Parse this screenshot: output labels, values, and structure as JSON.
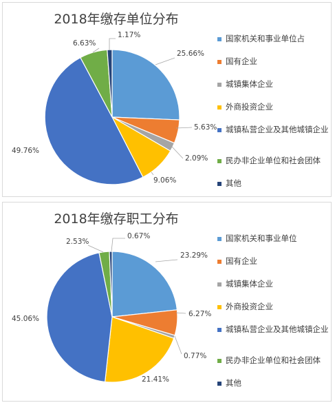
{
  "chart_data": [
    {
      "type": "pie",
      "title": "2018年缴存单位分布",
      "categories": [
        "国家机关和事业单位占",
        "国有企业",
        "城镇集体企业",
        "外商投资企业",
        "城镇私营企业及其他城镇企业",
        "民办非企业单位和社会团体",
        "其他"
      ],
      "values": [
        25.66,
        5.63,
        2.09,
        9.06,
        49.76,
        6.63,
        1.17
      ],
      "value_labels": [
        "25.66%",
        "5.63%",
        "2.09%",
        "9.06%",
        "49.76%",
        "6.63%",
        "1.17%"
      ],
      "colors": [
        "#5b9bd5",
        "#ed7d31",
        "#a5a5a5",
        "#ffc000",
        "#4472c4",
        "#70ad47",
        "#264478"
      ],
      "legend_position": "right"
    },
    {
      "type": "pie",
      "title": "2018年缴存职工分布",
      "categories": [
        "国家机关和事业单位",
        "国有企业",
        "城镇集体企业",
        "外商投资企业",
        "城镇私营企业及其他城镇企业",
        "民办非企业单位和社会团体",
        "其他"
      ],
      "values": [
        23.29,
        6.27,
        0.77,
        21.41,
        45.06,
        2.53,
        0.67
      ],
      "value_labels": [
        "23.29%",
        "6.27%",
        "0.77%",
        "21.41%",
        "45.06%",
        "2.53%",
        "0.67%"
      ],
      "colors": [
        "#5b9bd5",
        "#ed7d31",
        "#a5a5a5",
        "#ffc000",
        "#4472c4",
        "#70ad47",
        "#264478"
      ],
      "legend_position": "right"
    }
  ]
}
